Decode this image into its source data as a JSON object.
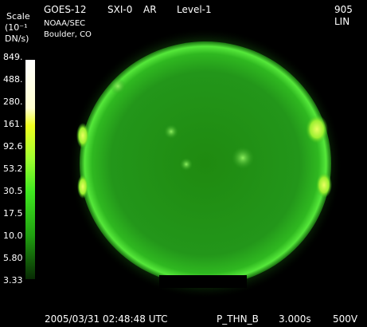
{
  "header": {
    "satellite": "GOES-12",
    "instrument": "SXI-0",
    "mode": "AR",
    "level": "Level-1",
    "frame": "905",
    "scaling": "LIN",
    "agency": "NOAA/SEC",
    "location": "Boulder, CO"
  },
  "scale": {
    "title": "Scale",
    "unit_line1": "(10⁻¹",
    "unit_line2": "DN/s)",
    "labels": [
      "849.",
      "488.",
      "280.",
      "161.",
      "92.6",
      "53.2",
      "30.5",
      "17.5",
      "10.0",
      "5.80",
      "3.33"
    ]
  },
  "footer": {
    "timestamp": "2005/03/31 02:48:48 UTC",
    "filter": "P_THN_B",
    "exposure": "3.000s",
    "voltage": "500V"
  }
}
